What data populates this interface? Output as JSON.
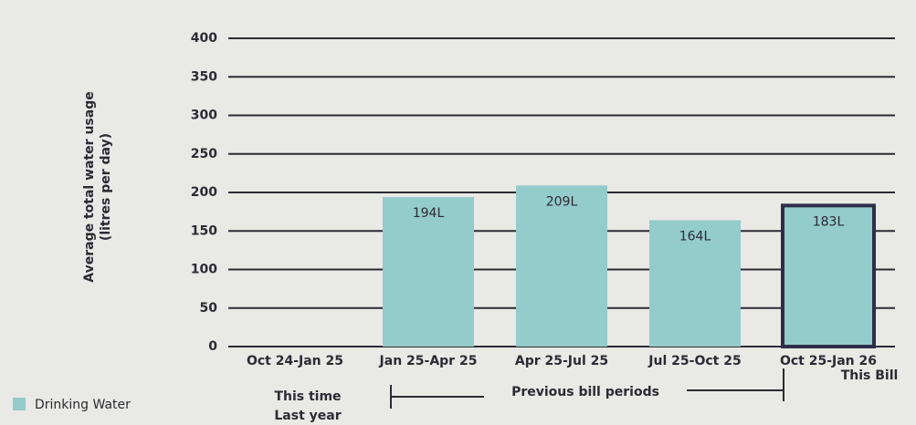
{
  "chart_data": {
    "type": "bar",
    "ylabel": [
      "Average total water usage",
      "(litres per day)"
    ],
    "categories": [
      "Oct 24-Jan 25",
      "Jan 25-Apr 25",
      "Apr 25-Jul 25",
      "Jul 25-Oct 25",
      "Oct 25-Jan 26"
    ],
    "series": [
      {
        "name": "Drinking Water",
        "color": "#94cbcb",
        "values": [
          0,
          194,
          209,
          164,
          183
        ],
        "value_labels": [
          null,
          "194L",
          "209L",
          "164L",
          "183L"
        ]
      }
    ],
    "outlined_index": 4,
    "outline_color": "#2e2e4a",
    "ylim": [
      0,
      400
    ],
    "yticks": [
      0,
      50,
      100,
      150,
      200,
      250,
      300,
      350,
      400
    ],
    "grid": true,
    "annotations": [
      [
        "This time",
        "Last year"
      ],
      [
        "Previous bill periods"
      ],
      [
        "This Bill"
      ]
    ]
  }
}
